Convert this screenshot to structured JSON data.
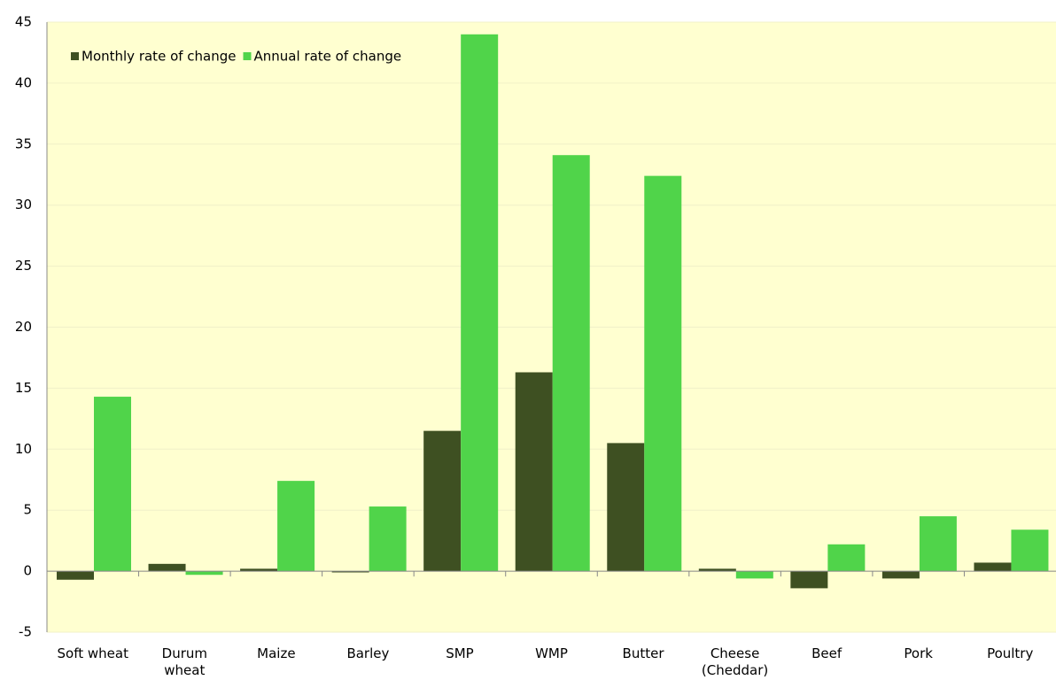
{
  "chart_data": {
    "type": "bar",
    "categories": [
      "Soft wheat",
      "Durum wheat",
      "Maize",
      "Barley",
      "SMP",
      "WMP",
      "Butter",
      "Cheese (Cheddar)",
      "Beef",
      "Pork",
      "Poultry"
    ],
    "series": [
      {
        "name": "Monthly rate of change",
        "color": "#3e5022",
        "values": [
          -0.7,
          0.6,
          0.2,
          -0.1,
          11.5,
          16.3,
          10.5,
          0.2,
          -1.4,
          -0.6,
          0.7
        ]
      },
      {
        "name": "Annual rate of change",
        "color": "#50d44a",
        "values": [
          14.3,
          -0.3,
          7.4,
          5.3,
          44.0,
          34.1,
          32.4,
          -0.6,
          2.2,
          4.5,
          3.4
        ]
      }
    ],
    "ylim": [
      -5,
      45
    ],
    "yticks": [
      -5,
      0,
      5,
      10,
      15,
      20,
      25,
      30,
      35,
      40,
      45
    ],
    "grid": true,
    "legend": "top-left",
    "background": "#ffffd0"
  }
}
